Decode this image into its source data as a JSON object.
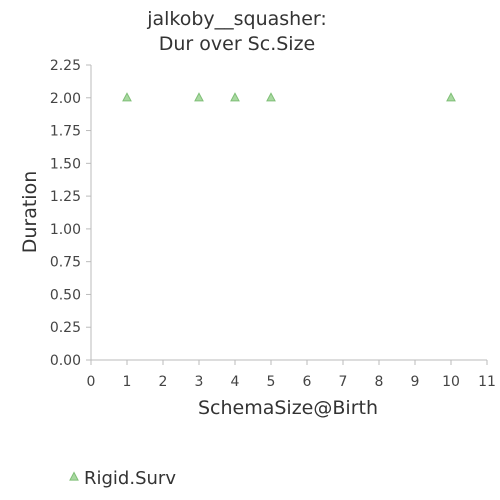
{
  "chart_data": {
    "type": "scatter",
    "title_lines": [
      "jalkoby__squasher:",
      "Dur over Sc.Size"
    ],
    "xlabel": "SchemaSize@Birth",
    "ylabel": "Duration",
    "xlim": [
      0,
      11
    ],
    "ylim": [
      0,
      2.25
    ],
    "x_ticks": [
      0,
      1,
      2,
      3,
      4,
      5,
      6,
      7,
      8,
      9,
      10,
      11
    ],
    "y_ticks": [
      0.0,
      0.25,
      0.5,
      0.75,
      1.0,
      1.25,
      1.5,
      1.75,
      2.0,
      2.25
    ],
    "x_tick_labels": [
      "0",
      "1",
      "2",
      "3",
      "4",
      "5",
      "6",
      "7",
      "8",
      "9",
      "10",
      "11"
    ],
    "y_tick_labels": [
      "0.00",
      "0.25",
      "0.50",
      "0.75",
      "1.00",
      "1.25",
      "1.50",
      "1.75",
      "2.00",
      "2.25"
    ],
    "grid": false,
    "legend_position": "bottom-left",
    "series": [
      {
        "name": "Rigid.Surv",
        "marker": "triangle",
        "color": "#a8d8a0",
        "edge_color": "#7fbf77",
        "points": [
          {
            "x": 1,
            "y": 2.0
          },
          {
            "x": 3,
            "y": 2.0
          },
          {
            "x": 4,
            "y": 2.0
          },
          {
            "x": 5,
            "y": 2.0
          },
          {
            "x": 10,
            "y": 2.0
          }
        ]
      }
    ]
  }
}
